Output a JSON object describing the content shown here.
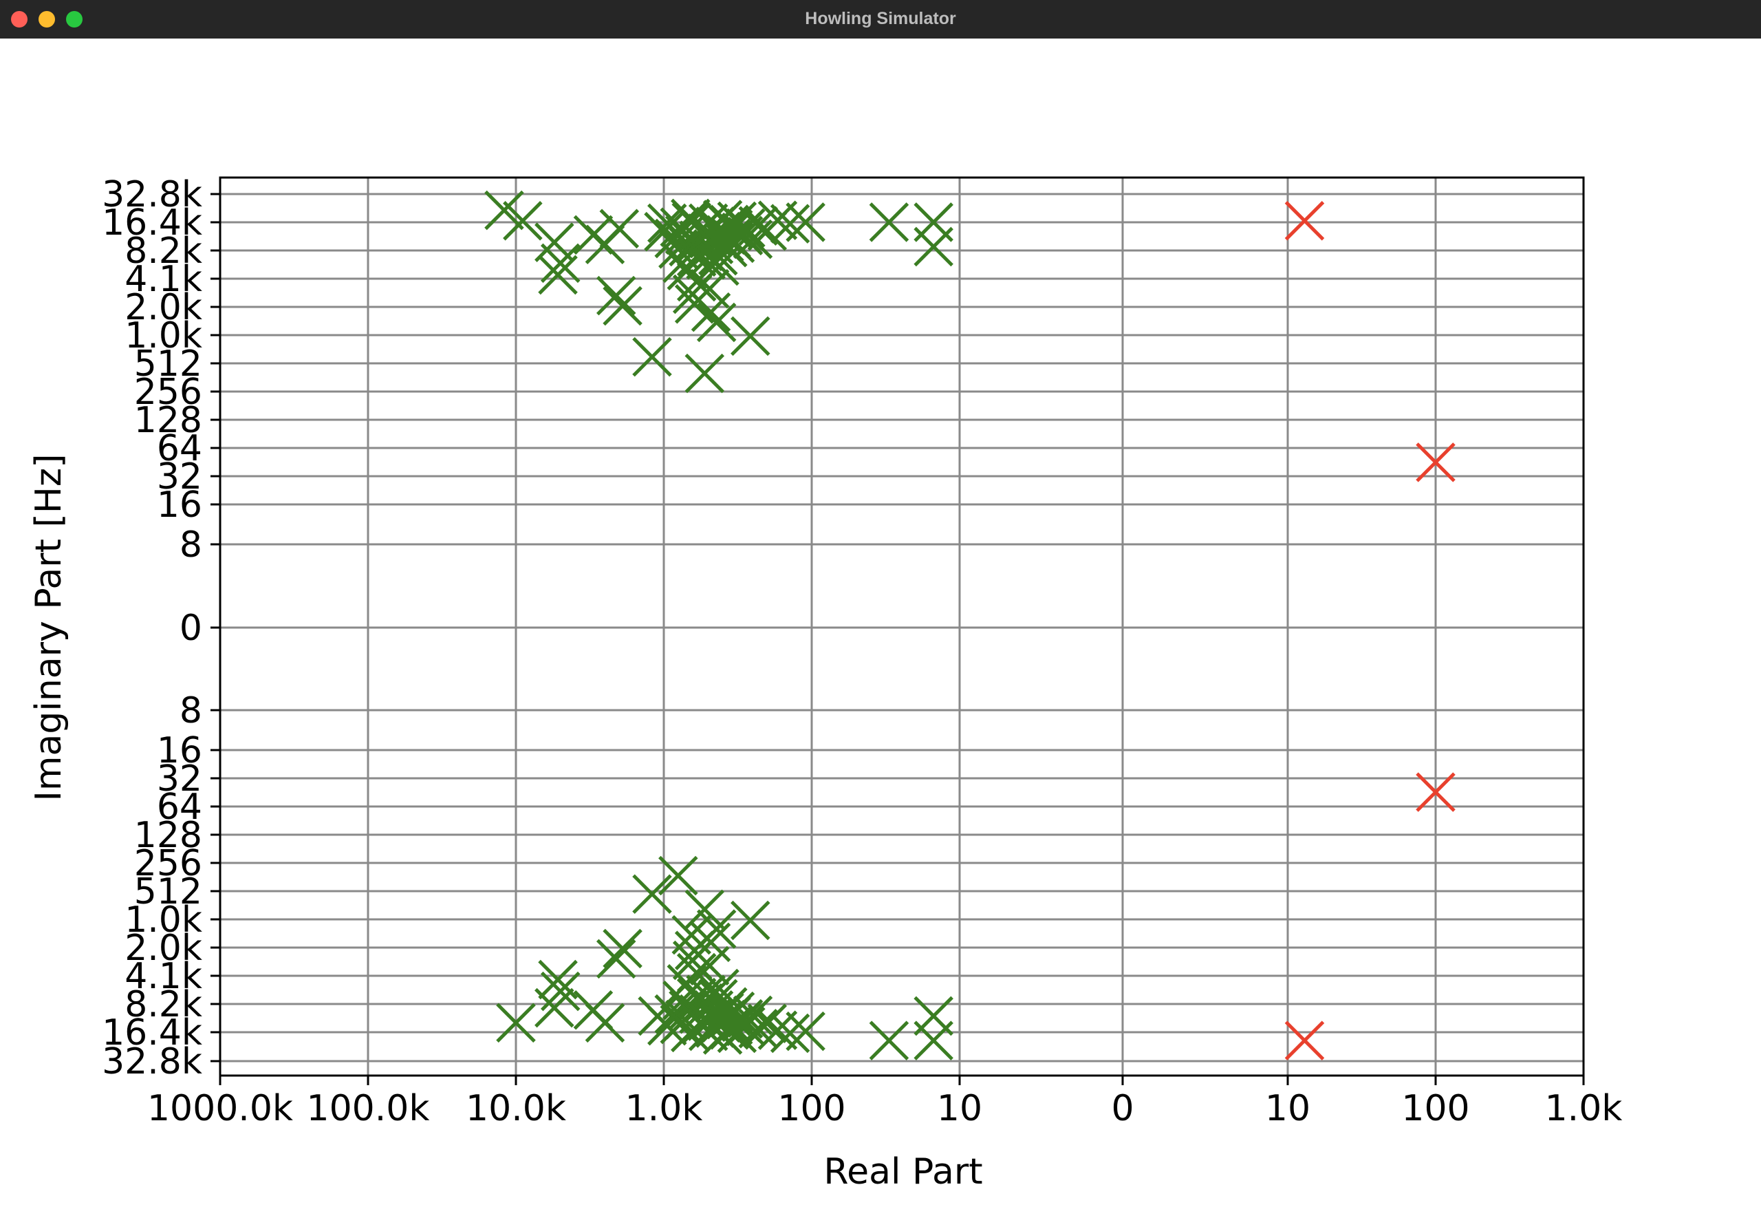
{
  "window": {
    "title": "Howling Simulator"
  },
  "colors": {
    "zeros": "#3a7d22",
    "poles": "#e8402d",
    "grid": "#8a8a8a",
    "axes": "#000000"
  },
  "chart_data": {
    "type": "scatter",
    "title": "",
    "xlabel": "Real Part",
    "ylabel": "Imaginary Part [Hz]",
    "x_scale": "symmetric-log",
    "y_scale": "symmetric-log",
    "xlim": [
      -1000000,
      1000
    ],
    "ylim": [
      -32768,
      32768
    ],
    "grid": true,
    "legend": "none",
    "x_ticks": [
      {
        "value": -1000000,
        "label": "1000.0k"
      },
      {
        "value": -100000,
        "label": "100.0k"
      },
      {
        "value": -10000,
        "label": "10.0k"
      },
      {
        "value": -1000,
        "label": "1.0k"
      },
      {
        "value": -100,
        "label": "100"
      },
      {
        "value": -10,
        "label": "10"
      },
      {
        "value": 0,
        "label": "0"
      },
      {
        "value": 10,
        "label": "10"
      },
      {
        "value": 100,
        "label": "100"
      },
      {
        "value": 1000,
        "label": "1.0k"
      }
    ],
    "y_ticks": [
      {
        "value": 32768,
        "label": "32.8k"
      },
      {
        "value": 16384,
        "label": "16.4k"
      },
      {
        "value": 8192,
        "label": "8.2k"
      },
      {
        "value": 4096,
        "label": "4.1k"
      },
      {
        "value": 2048,
        "label": "2.0k"
      },
      {
        "value": 1024,
        "label": "1.0k"
      },
      {
        "value": 512,
        "label": "512"
      },
      {
        "value": 256,
        "label": "256"
      },
      {
        "value": 128,
        "label": "128"
      },
      {
        "value": 64,
        "label": "64"
      },
      {
        "value": 32,
        "label": "32"
      },
      {
        "value": 16,
        "label": "16"
      },
      {
        "value": 8,
        "label": "8"
      },
      {
        "value": 0,
        "label": "0"
      },
      {
        "value": -8,
        "label": "8"
      },
      {
        "value": -16,
        "label": "16"
      },
      {
        "value": -32,
        "label": "32"
      },
      {
        "value": -64,
        "label": "64"
      },
      {
        "value": -128,
        "label": "128"
      },
      {
        "value": -256,
        "label": "256"
      },
      {
        "value": -512,
        "label": "512"
      },
      {
        "value": -1024,
        "label": "1.0k"
      },
      {
        "value": -2048,
        "label": "2.0k"
      },
      {
        "value": -4096,
        "label": "4.1k"
      },
      {
        "value": -8192,
        "label": "8.2k"
      },
      {
        "value": -16384,
        "label": "16.4k"
      },
      {
        "value": -32768,
        "label": "32.8k"
      }
    ],
    "series": [
      {
        "marker": "x",
        "color": "#3a7d22",
        "points": [
          {
            "x": -12000,
            "y": 22000
          },
          {
            "x": -9000,
            "y": 17000
          },
          {
            "x": -5500,
            "y": 10000
          },
          {
            "x": -5000,
            "y": 6000
          },
          {
            "x": -5200,
            "y": 4500
          },
          {
            "x": -3000,
            "y": 12000
          },
          {
            "x": -2500,
            "y": 9500
          },
          {
            "x": -2000,
            "y": 14000
          },
          {
            "x": -2100,
            "y": 2700
          },
          {
            "x": -1900,
            "y": 2100
          },
          {
            "x": -1200,
            "y": 600
          },
          {
            "x": -1000,
            "y": 13000
          },
          {
            "x": -950,
            "y": 16000
          },
          {
            "x": -850,
            "y": 11000
          },
          {
            "x": -800,
            "y": 8500
          },
          {
            "x": -780,
            "y": 14500
          },
          {
            "x": -750,
            "y": 6000
          },
          {
            "x": -720,
            "y": 12000
          },
          {
            "x": -700,
            "y": 5000
          },
          {
            "x": -680,
            "y": 9000
          },
          {
            "x": -660,
            "y": 18000
          },
          {
            "x": -650,
            "y": 16500
          },
          {
            "x": -640,
            "y": 2800
          },
          {
            "x": -620,
            "y": 2200
          },
          {
            "x": -600,
            "y": 3800
          },
          {
            "x": -600,
            "y": 7000
          },
          {
            "x": -580,
            "y": 10500
          },
          {
            "x": -560,
            "y": 13500
          },
          {
            "x": -540,
            "y": 8000
          },
          {
            "x": -530,
            "y": 400
          },
          {
            "x": -520,
            "y": 6500
          },
          {
            "x": -510,
            "y": 12500
          },
          {
            "x": -500,
            "y": 16000
          },
          {
            "x": -490,
            "y": 3200
          },
          {
            "x": -480,
            "y": 1800
          },
          {
            "x": -470,
            "y": 11500
          },
          {
            "x": -460,
            "y": 9500
          },
          {
            "x": -450,
            "y": 14800
          },
          {
            "x": -440,
            "y": 1400
          },
          {
            "x": -430,
            "y": 7200
          },
          {
            "x": -420,
            "y": 5600
          },
          {
            "x": -410,
            "y": 13000
          },
          {
            "x": -400,
            "y": 17500
          },
          {
            "x": -390,
            "y": 10000
          },
          {
            "x": -380,
            "y": 12000
          },
          {
            "x": -370,
            "y": 8800
          },
          {
            "x": -360,
            "y": 15500
          },
          {
            "x": -350,
            "y": 11000
          },
          {
            "x": -340,
            "y": 13800
          },
          {
            "x": -330,
            "y": 9800
          },
          {
            "x": -320,
            "y": 16800
          },
          {
            "x": -300,
            "y": 12800
          },
          {
            "x": -290,
            "y": 11800
          },
          {
            "x": -280,
            "y": 14200
          },
          {
            "x": -260,
            "y": 1000
          },
          {
            "x": -250,
            "y": 10800
          },
          {
            "x": -230,
            "y": 15000
          },
          {
            "x": -200,
            "y": 13200
          },
          {
            "x": -170,
            "y": 17200
          },
          {
            "x": -140,
            "y": 15800
          },
          {
            "x": -110,
            "y": 16400
          },
          {
            "x": -30,
            "y": 16400
          },
          {
            "x": -15,
            "y": 16400
          },
          {
            "x": -15,
            "y": 9000
          },
          {
            "x": -10000,
            "y": -13000
          },
          {
            "x": -5500,
            "y": -9000
          },
          {
            "x": -5000,
            "y": -6000
          },
          {
            "x": -5200,
            "y": -4500
          },
          {
            "x": -3000,
            "y": -9500
          },
          {
            "x": -2500,
            "y": -13000
          },
          {
            "x": -2100,
            "y": -2700
          },
          {
            "x": -1900,
            "y": -2100
          },
          {
            "x": -1200,
            "y": -550
          },
          {
            "x": -1100,
            "y": -11000
          },
          {
            "x": -950,
            "y": -14000
          },
          {
            "x": -850,
            "y": -10500
          },
          {
            "x": -800,
            "y": -350
          },
          {
            "x": -780,
            "y": -13500
          },
          {
            "x": -750,
            "y": -7500
          },
          {
            "x": -720,
            "y": -12000
          },
          {
            "x": -700,
            "y": -5000
          },
          {
            "x": -680,
            "y": -9500
          },
          {
            "x": -660,
            "y": -16500
          },
          {
            "x": -650,
            "y": -1500
          },
          {
            "x": -640,
            "y": -2800
          },
          {
            "x": -620,
            "y": -2200
          },
          {
            "x": -600,
            "y": -3800
          },
          {
            "x": -600,
            "y": -7000
          },
          {
            "x": -580,
            "y": -10500
          },
          {
            "x": -560,
            "y": -13500
          },
          {
            "x": -540,
            "y": -8000
          },
          {
            "x": -530,
            "y": -800
          },
          {
            "x": -520,
            "y": -6500
          },
          {
            "x": -510,
            "y": -12500
          },
          {
            "x": -500,
            "y": -16000
          },
          {
            "x": -490,
            "y": -3200
          },
          {
            "x": -480,
            "y": -1800
          },
          {
            "x": -470,
            "y": -11500
          },
          {
            "x": -460,
            "y": -9500
          },
          {
            "x": -450,
            "y": -14800
          },
          {
            "x": -440,
            "y": -1300
          },
          {
            "x": -430,
            "y": -7200
          },
          {
            "x": -420,
            "y": -5600
          },
          {
            "x": -410,
            "y": -13000
          },
          {
            "x": -400,
            "y": -17500
          },
          {
            "x": -390,
            "y": -10000
          },
          {
            "x": -380,
            "y": -12000
          },
          {
            "x": -370,
            "y": -8800
          },
          {
            "x": -360,
            "y": -15500
          },
          {
            "x": -350,
            "y": -11000
          },
          {
            "x": -340,
            "y": -13800
          },
          {
            "x": -330,
            "y": -9800
          },
          {
            "x": -320,
            "y": -16800
          },
          {
            "x": -300,
            "y": -12800
          },
          {
            "x": -290,
            "y": -11800
          },
          {
            "x": -280,
            "y": -14200
          },
          {
            "x": -260,
            "y": -1050
          },
          {
            "x": -250,
            "y": -10800
          },
          {
            "x": -230,
            "y": -15000
          },
          {
            "x": -200,
            "y": -13200
          },
          {
            "x": -170,
            "y": -15600
          },
          {
            "x": -140,
            "y": -16800
          },
          {
            "x": -110,
            "y": -16000
          },
          {
            "x": -30,
            "y": -20000
          },
          {
            "x": -15,
            "y": -20000
          },
          {
            "x": -15,
            "y": -11000
          }
        ]
      },
      {
        "marker": "x",
        "color": "#e8402d",
        "points": [
          {
            "x": 13,
            "y": 17000
          },
          {
            "x": 100,
            "y": 45
          },
          {
            "x": 100,
            "y": -45
          },
          {
            "x": 13,
            "y": -20000
          }
        ]
      }
    ]
  }
}
